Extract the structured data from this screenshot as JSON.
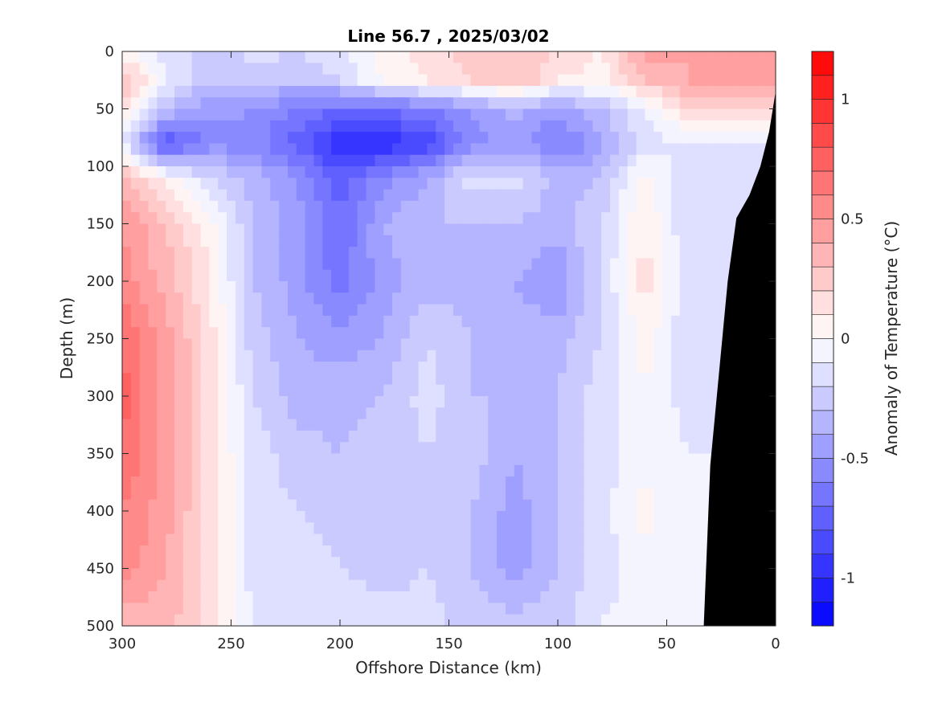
{
  "chart_data": {
    "type": "heatmap",
    "title": "Line 56.7 , 2025/03/02",
    "xlabel": "Offshore Distance (km)",
    "ylabel": "Depth (m)",
    "xlim": [
      300,
      0
    ],
    "ylim": [
      0,
      500
    ],
    "x_ticks": [
      300,
      250,
      200,
      150,
      100,
      50,
      0
    ],
    "y_ticks": [
      0,
      50,
      100,
      150,
      200,
      250,
      300,
      350,
      400,
      450,
      500
    ],
    "colorbar": {
      "label": "Anomaly of Temperature (°C)",
      "range": [
        -1.2,
        1.2
      ],
      "ticks": [
        1,
        0.5,
        0,
        -0.5,
        -1
      ],
      "tick_labels": [
        "1",
        "0.5",
        "0",
        "-0.5",
        "-1"
      ],
      "levels": 24,
      "negative_color": "#0000ff",
      "positive_color": "#ff0000"
    },
    "distance_km": [
      300,
      280,
      260,
      240,
      220,
      200,
      180,
      160,
      140,
      120,
      100,
      80,
      60,
      40
    ],
    "depth_m": [
      0,
      25,
      50,
      80,
      110,
      150,
      200,
      250,
      300,
      350,
      400,
      450,
      500
    ],
    "values": [
      [
        0.05,
        -0.15,
        -0.25,
        -0.15,
        -0.2,
        -0.1,
        0.05,
        0.15,
        0.25,
        0.3,
        0.2,
        0.1,
        0.45,
        0.4
      ],
      [
        0.3,
        -0.1,
        -0.3,
        -0.3,
        -0.3,
        -0.2,
        0.0,
        0.1,
        0.2,
        0.3,
        0.1,
        0.05,
        0.3,
        0.4
      ],
      [
        0.2,
        -0.3,
        -0.45,
        -0.5,
        -0.6,
        -0.7,
        -0.7,
        -0.6,
        -0.5,
        -0.35,
        -0.45,
        -0.3,
        -0.1,
        0.2
      ],
      [
        -0.1,
        -0.85,
        -0.55,
        -0.55,
        -0.75,
        -1.0,
        -1.0,
        -0.9,
        -0.55,
        -0.45,
        -0.65,
        -0.45,
        -0.15,
        -0.1
      ],
      [
        0.35,
        0.05,
        -0.2,
        -0.35,
        -0.5,
        -0.75,
        -0.55,
        -0.4,
        -0.15,
        -0.15,
        -0.35,
        -0.3,
        0.05,
        -0.2
      ],
      [
        0.5,
        0.3,
        0.05,
        -0.3,
        -0.45,
        -0.7,
        -0.4,
        -0.3,
        -0.3,
        -0.3,
        -0.35,
        -0.2,
        0.1,
        -0.2
      ],
      [
        0.55,
        0.35,
        0.1,
        -0.3,
        -0.45,
        -0.65,
        -0.45,
        -0.35,
        -0.35,
        -0.4,
        -0.5,
        -0.2,
        0.15,
        -0.15
      ],
      [
        0.7,
        0.45,
        0.15,
        -0.25,
        -0.4,
        -0.45,
        -0.4,
        -0.2,
        -0.3,
        -0.35,
        -0.35,
        -0.2,
        0.05,
        -0.2
      ],
      [
        0.75,
        0.45,
        0.15,
        -0.2,
        -0.35,
        -0.35,
        -0.3,
        -0.15,
        -0.3,
        -0.3,
        -0.3,
        -0.15,
        0.0,
        -0.15
      ],
      [
        0.7,
        0.45,
        0.15,
        -0.15,
        -0.25,
        -0.3,
        -0.25,
        -0.2,
        -0.25,
        -0.4,
        -0.3,
        -0.15,
        -0.05,
        -0.1
      ],
      [
        0.6,
        0.45,
        0.15,
        -0.15,
        -0.2,
        -0.25,
        -0.25,
        -0.25,
        -0.3,
        -0.45,
        -0.3,
        -0.15,
        0.05,
        -0.1
      ],
      [
        0.55,
        0.4,
        0.15,
        -0.15,
        -0.15,
        -0.2,
        -0.25,
        -0.2,
        -0.3,
        -0.45,
        -0.3,
        -0.15,
        -0.05,
        -0.1
      ],
      [
        0.3,
        0.35,
        0.15,
        -0.1,
        -0.1,
        -0.1,
        -0.15,
        -0.15,
        -0.25,
        -0.25,
        -0.25,
        -0.1,
        -0.05,
        -0.1
      ]
    ],
    "land_mask": {
      "color": "#000000",
      "boundary": [
        [
          0,
          35
        ],
        [
          3,
          70
        ],
        [
          7,
          100
        ],
        [
          12,
          125
        ],
        [
          18,
          145
        ],
        [
          22,
          200
        ],
        [
          26,
          280
        ],
        [
          30,
          360
        ],
        [
          33,
          500
        ]
      ]
    }
  }
}
